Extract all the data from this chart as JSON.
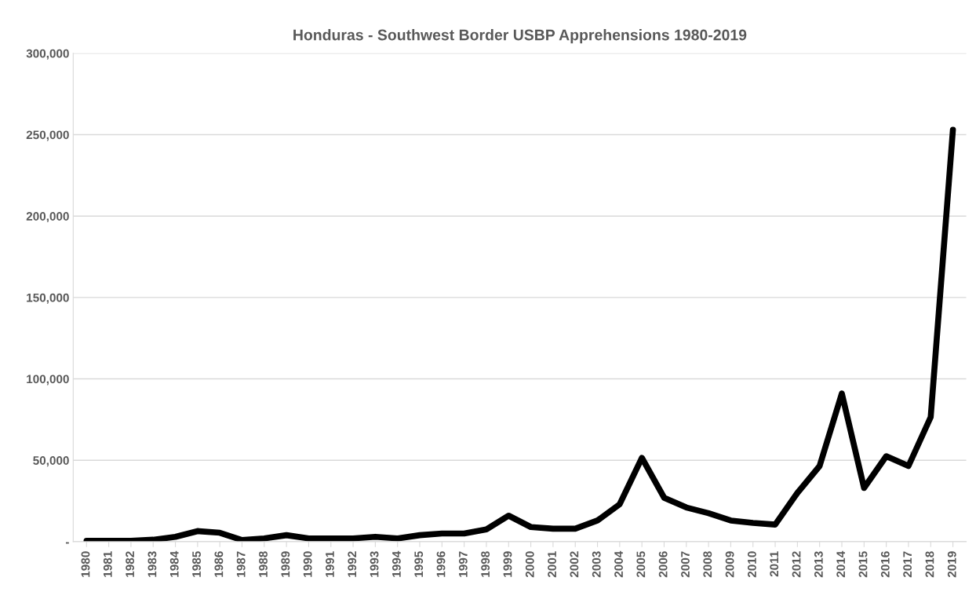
{
  "chart_data": {
    "type": "line",
    "title": "Honduras - Southwest Border USBP Apprehensions 1980-2019",
    "categories": [
      "1980",
      "1981",
      "1982",
      "1983",
      "1984",
      "1985",
      "1986",
      "1987",
      "1988",
      "1989",
      "1990",
      "1991",
      "1992",
      "1993",
      "1994",
      "1995",
      "1996",
      "1997",
      "1998",
      "1999",
      "2000",
      "2001",
      "2002",
      "2003",
      "2004",
      "2005",
      "2006",
      "2007",
      "2008",
      "2009",
      "2010",
      "2011",
      "2012",
      "2013",
      "2014",
      "2015",
      "2016",
      "2017",
      "2018",
      "2019"
    ],
    "series": [
      {
        "color": "#000000",
        "values": [
          500,
          500,
          500,
          1200,
          3000,
          6500,
          5500,
          1000,
          2000,
          4000,
          2000,
          2000,
          2000,
          3000,
          2000,
          4000,
          5000,
          5000,
          7500,
          16000,
          9000,
          8000,
          8000,
          13000,
          23000,
          51500,
          27000,
          21000,
          17500,
          13000,
          11500,
          10500,
          30000,
          46500,
          91000,
          33000,
          52500,
          46500,
          76500,
          253000
        ]
      }
    ],
    "ylim": [
      0,
      300000
    ],
    "yticks": [
      {
        "value": 0,
        "label": "-"
      },
      {
        "value": 50000,
        "label": "50,000"
      },
      {
        "value": 100000,
        "label": "100,000"
      },
      {
        "value": 150000,
        "label": "150,000"
      },
      {
        "value": 200000,
        "label": "200,000"
      },
      {
        "value": 250000,
        "label": "250,000"
      },
      {
        "value": 300000,
        "label": "300,000"
      }
    ],
    "grid": "y",
    "legend": false,
    "marker": "none",
    "line_style": "solid"
  }
}
